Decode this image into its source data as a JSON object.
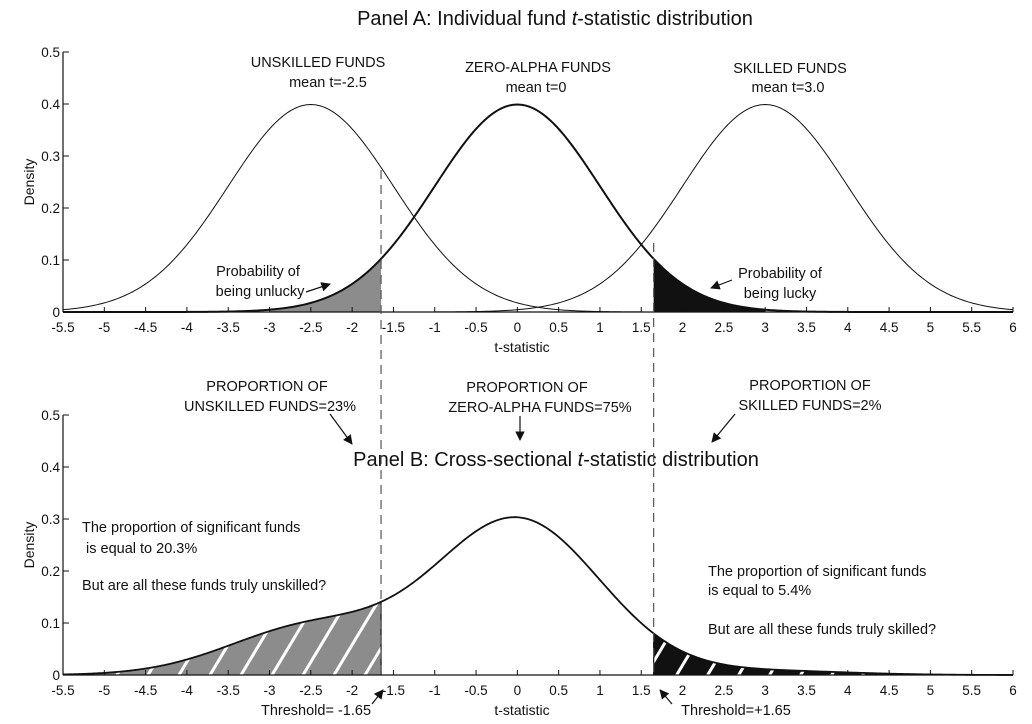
{
  "chart_data": [
    {
      "type": "line",
      "title_prefix": "Panel A: Individual fund ",
      "title_italic": "t",
      "title_suffix": "-statistic distribution",
      "xlabel": "t-statistic",
      "ylabel": "Density",
      "xlim": [
        -5.5,
        6
      ],
      "ylim": [
        0,
        0.5
      ],
      "xticks": [
        -5.5,
        -5,
        -4.5,
        -4,
        -3.5,
        -3,
        -2.5,
        -2,
        -1.5,
        -1,
        -0.5,
        0,
        0.5,
        1,
        1.5,
        2,
        2.5,
        3,
        3.5,
        4,
        4.5,
        5,
        5.5,
        6
      ],
      "xtick_labels": [
        "-5.5",
        "-5",
        "-4.5",
        "-4",
        "-3.5",
        "-3",
        "-2.5",
        "-2",
        "-1.5",
        "-1",
        "-0.5",
        "0",
        "0.5",
        "1",
        "1.5",
        "2",
        "2.5",
        "3",
        "3.5",
        "4",
        "4.5",
        "5",
        "5.5",
        "6"
      ],
      "yticks": [
        0,
        0.1,
        0.2,
        0.3,
        0.4,
        0.5
      ],
      "ytick_labels": [
        "0",
        "0.1",
        "0.2",
        "0.3",
        "0.4",
        "0.5"
      ],
      "series": [
        {
          "mean": -2.5,
          "sd": 1,
          "line": "thin",
          "label_title": "UNSKILLED FUNDS",
          "label_sub": "mean t=-2.5"
        },
        {
          "mean": 0,
          "sd": 1,
          "line": "thick",
          "label_title": "ZERO-ALPHA FUNDS",
          "label_sub": "mean t=0"
        },
        {
          "mean": 3.0,
          "sd": 1,
          "line": "thin",
          "label_title": "SKILLED FUNDS",
          "label_sub": "mean t=3.0"
        }
      ],
      "shaded_regions": [
        {
          "curve_mean": 0,
          "from": -3,
          "to": -1.65,
          "color": "#8c8c8c",
          "label_1": "Probability of",
          "label_2": "being unlucky"
        },
        {
          "curve_mean": 0,
          "from": 1.65,
          "to": 3,
          "color": "#111111",
          "label_1": "Probability of",
          "label_2": "being lucky"
        }
      ]
    },
    {
      "type": "line",
      "title_prefix": "Panel B: Cross-sectional ",
      "title_italic": "t",
      "title_suffix": "-statistic distribution",
      "xlabel": "t-statistic",
      "ylabel": "Density",
      "xlim": [
        -5.5,
        6
      ],
      "ylim": [
        0,
        0.5
      ],
      "xticks": [
        -5.5,
        -5,
        -4.5,
        -4,
        -3.5,
        -3,
        -2.5,
        -2,
        -1.5,
        -1,
        -0.5,
        0,
        0.5,
        1,
        1.5,
        2,
        2.5,
        3,
        3.5,
        4,
        4.5,
        5,
        5.5,
        6
      ],
      "xtick_labels": [
        "-5.5",
        "-5",
        "-4.5",
        "-4",
        "-3.5",
        "-3",
        "-2.5",
        "-2",
        "-1.5",
        "-1",
        "-0.5",
        "0",
        "0.5",
        "1",
        "1.5",
        "2",
        "2.5",
        "3",
        "3.5",
        "4",
        "4.5",
        "5",
        "5.5",
        "6"
      ],
      "yticks": [
        0,
        0.1,
        0.2,
        0.3,
        0.4,
        0.5
      ],
      "ytick_labels": [
        "0",
        "0.1",
        "0.2",
        "0.3",
        "0.4",
        "0.5"
      ],
      "mixture": [
        {
          "mean": -2.5,
          "sd": 1,
          "weight": 0.23,
          "proportion_1": "PROPORTION OF",
          "proportion_2": "UNSKILLED FUNDS=23%"
        },
        {
          "mean": 0,
          "sd": 1,
          "weight": 0.75,
          "proportion_1": "PROPORTION OF",
          "proportion_2": "ZERO-ALPHA FUNDS=75%"
        },
        {
          "mean": 3.0,
          "sd": 1,
          "weight": 0.02,
          "proportion_1": "PROPORTION OF",
          "proportion_2": "SKILLED FUNDS=2%"
        }
      ],
      "shaded_regions": [
        {
          "from": -5.5,
          "to": -1.65,
          "color": "#8c8c8c",
          "hatch": "white"
        },
        {
          "from": 1.65,
          "to": 6,
          "color": "#111111",
          "hatch": "white"
        }
      ],
      "thresholds": [
        {
          "value": -1.65,
          "label": "Threshold= -1.65"
        },
        {
          "value": 1.65,
          "label": "Threshold=+1.65"
        }
      ],
      "annotations": {
        "left_1": "The proportion of significant funds",
        "left_2": "is equal to 20.3%",
        "left_3": "But are all these funds truly unskilled?",
        "right_1": "The proportion of significant funds",
        "right_2": "is equal to 5.4%",
        "right_3": "But are all these funds truly skilled?"
      }
    }
  ]
}
